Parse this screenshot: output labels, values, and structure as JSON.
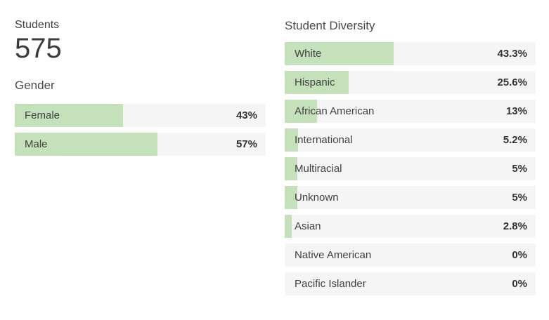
{
  "colors": {
    "bar_fill": "#c5e1bb",
    "row_background": "#f5f5f5",
    "text_primary": "#404040",
    "value_text": "#333333"
  },
  "kpi": {
    "label": "Students",
    "value": "575"
  },
  "gender_chart": {
    "title": "Gender",
    "rows": [
      {
        "label": "Female",
        "value": "43%",
        "pct": 43
      },
      {
        "label": "Male",
        "value": "57%",
        "pct": 57
      }
    ]
  },
  "diversity_chart": {
    "title": "Student Diversity",
    "rows": [
      {
        "label": "White",
        "value": "43.3%",
        "pct": 43.3
      },
      {
        "label": "Hispanic",
        "value": "25.6%",
        "pct": 25.6
      },
      {
        "label": "African American",
        "value": "13%",
        "pct": 13
      },
      {
        "label": "International",
        "value": "5.2%",
        "pct": 5.2
      },
      {
        "label": "Multiracial",
        "value": "5%",
        "pct": 5
      },
      {
        "label": "Unknown",
        "value": "5%",
        "pct": 5
      },
      {
        "label": "Asian",
        "value": "2.8%",
        "pct": 2.8
      },
      {
        "label": "Native American",
        "value": "0%",
        "pct": 0
      },
      {
        "label": "Pacific Islander",
        "value": "0%",
        "pct": 0
      }
    ]
  },
  "chart_data": [
    {
      "type": "bar",
      "orientation": "horizontal",
      "title": "Gender",
      "categories": [
        "Female",
        "Male"
      ],
      "values": [
        43,
        57
      ],
      "value_format": "percent",
      "xlim": [
        0,
        100
      ],
      "grid": false,
      "legend": "none"
    },
    {
      "type": "bar",
      "orientation": "horizontal",
      "title": "Student Diversity",
      "categories": [
        "White",
        "Hispanic",
        "African American",
        "International",
        "Multiracial",
        "Unknown",
        "Asian",
        "Native American",
        "Pacific Islander"
      ],
      "values": [
        43.3,
        25.6,
        13,
        5.2,
        5,
        5,
        2.8,
        0,
        0
      ],
      "value_format": "percent",
      "xlim": [
        0,
        100
      ],
      "grid": false,
      "legend": "none"
    }
  ]
}
